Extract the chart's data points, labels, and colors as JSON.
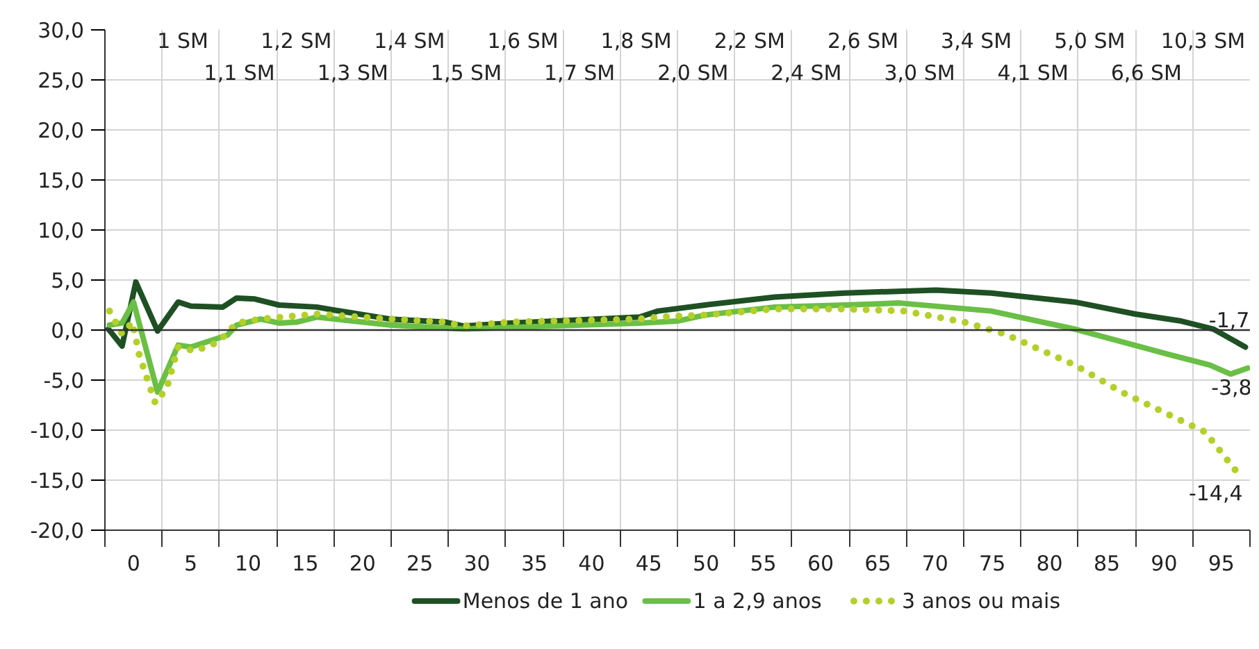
{
  "chart_data": {
    "type": "line",
    "xlim": [
      -2.5,
      97.5
    ],
    "ylim": [
      -20,
      30
    ],
    "xticks": [
      {
        "value": -2.5,
        "label": null
      },
      {
        "value": 0,
        "label": "0"
      },
      {
        "value": 2.5,
        "label": null
      },
      {
        "value": 5,
        "label": "5"
      },
      {
        "value": 7.5,
        "label": null
      },
      {
        "value": 10,
        "label": "10"
      },
      {
        "value": 12.5,
        "label": null
      },
      {
        "value": 15,
        "label": "15"
      },
      {
        "value": 17.5,
        "label": null
      },
      {
        "value": 20,
        "label": "20"
      },
      {
        "value": 22.5,
        "label": null
      },
      {
        "value": 25,
        "label": "25"
      },
      {
        "value": 27.5,
        "label": null
      },
      {
        "value": 30,
        "label": "30"
      },
      {
        "value": 32.5,
        "label": null
      },
      {
        "value": 35,
        "label": "35"
      },
      {
        "value": 37.5,
        "label": null
      },
      {
        "value": 40,
        "label": "40"
      },
      {
        "value": 42.5,
        "label": null
      },
      {
        "value": 45,
        "label": "45"
      },
      {
        "value": 47.5,
        "label": null
      },
      {
        "value": 50,
        "label": "50"
      },
      {
        "value": 52.5,
        "label": null
      },
      {
        "value": 55,
        "label": "55"
      },
      {
        "value": 57.5,
        "label": null
      },
      {
        "value": 60,
        "label": "60"
      },
      {
        "value": 62.5,
        "label": null
      },
      {
        "value": 65,
        "label": "65"
      },
      {
        "value": 67.5,
        "label": null
      },
      {
        "value": 70,
        "label": "70"
      },
      {
        "value": 72.5,
        "label": null
      },
      {
        "value": 75,
        "label": "75"
      },
      {
        "value": 77.5,
        "label": null
      },
      {
        "value": 80,
        "label": "80"
      },
      {
        "value": 82.5,
        "label": null
      },
      {
        "value": 85,
        "label": "85"
      },
      {
        "value": 87.5,
        "label": null
      },
      {
        "value": 90,
        "label": "90"
      },
      {
        "value": 92.5,
        "label": null
      },
      {
        "value": 95,
        "label": "95"
      },
      {
        "value": 97.5,
        "label": null
      }
    ],
    "yticks": [
      {
        "value": -20,
        "label": "-20,0"
      },
      {
        "value": -15,
        "label": "-15,0"
      },
      {
        "value": -10,
        "label": "-10,0"
      },
      {
        "value": -5,
        "label": "-5,0"
      },
      {
        "value": 0,
        "label": "0,0"
      },
      {
        "value": 5,
        "label": "5,0"
      },
      {
        "value": 10,
        "label": "10,0"
      },
      {
        "value": 15,
        "label": "15,0"
      },
      {
        "value": 20,
        "label": "20,0"
      },
      {
        "value": 25,
        "label": "25,0"
      },
      {
        "value": 30,
        "label": "30,0"
      }
    ],
    "grid": true,
    "legend": "bottom",
    "ref_lines": [
      {
        "axis": "y",
        "value": 0,
        "color": "#333333"
      }
    ],
    "series": [
      {
        "name": "Menos de 1 ano",
        "color": "#1e5023",
        "line_style": "solid",
        "x": [
          -2.2,
          -1.0,
          0.2,
          2.1,
          3.9,
          5.0,
          7.8,
          9.0,
          10.6,
          12.7,
          16.0,
          17.5,
          22.4,
          27.2,
          28.8,
          32.9,
          44.2,
          45.8,
          49.9,
          56.0,
          62.1,
          70.1,
          74.9,
          82.2,
          87.5,
          91.5,
          94.3,
          97.1
        ],
        "values": [
          0.1,
          -1.6,
          4.8,
          -0.1,
          2.8,
          2.4,
          2.3,
          3.2,
          3.1,
          2.5,
          2.3,
          2.0,
          1.1,
          0.8,
          0.4,
          0.7,
          1.3,
          1.9,
          2.5,
          3.3,
          3.7,
          4.0,
          3.7,
          2.8,
          1.6,
          0.9,
          0.1,
          -1.7
        ]
      },
      {
        "name": "1 a 2,9 anos",
        "color": "#6abf45",
        "line_style": "solid",
        "x": [
          -2.1,
          -1.0,
          0.0,
          2.1,
          3.9,
          5.0,
          8.2,
          9.0,
          11.1,
          12.7,
          14.3,
          16.0,
          22.4,
          28.8,
          44.2,
          47.5,
          49.9,
          56.0,
          62.1,
          66.9,
          74.9,
          82.2,
          90.3,
          94.0,
          95.8,
          97.3
        ],
        "values": [
          0.5,
          0.7,
          2.8,
          -6.2,
          -1.5,
          -1.7,
          -0.5,
          0.5,
          1.1,
          0.7,
          0.8,
          1.3,
          0.5,
          0.1,
          0.7,
          0.9,
          1.5,
          2.3,
          2.5,
          2.7,
          1.9,
          0.1,
          -2.4,
          -3.5,
          -4.4,
          -3.8
        ]
      },
      {
        "name": "3 anos ou mais",
        "color": "#b5cf2a",
        "line_style": "dotted",
        "x": [
          -2.1,
          -1.0,
          -0.1,
          0.5,
          1.9,
          2.9,
          3.9,
          5.4,
          7.4,
          9.0,
          11.1,
          16.0,
          22.4,
          27.2,
          28.8,
          32.9,
          44.2,
          45.8,
          49.9,
          56.0,
          62.1,
          67.3,
          72.5,
          76.1,
          82.2,
          86.3,
          90.3,
          93.6,
          96.5
        ],
        "values": [
          1.9,
          -0.4,
          0.8,
          -2.5,
          -7.3,
          -5.8,
          -1.7,
          -2.1,
          -1.2,
          0.7,
          1.1,
          1.6,
          1.1,
          0.8,
          0.4,
          0.8,
          1.1,
          1.3,
          1.5,
          2.1,
          2.1,
          1.9,
          0.8,
          -0.4,
          -3.5,
          -6.2,
          -8.4,
          -10.2,
          -14.4
        ]
      }
    ],
    "annotations": [
      "1 SM",
      "1,1 SM",
      "1,2 SM",
      "1,3 SM",
      "1,4 SM",
      "1,5 SM",
      "1,6 SM",
      "1,7 SM",
      "1,8 SM",
      "2,0 SM",
      "2,2 SM",
      "2,4 SM",
      "2,6 SM",
      "3,0 SM",
      "3,4 SM",
      "4,1 SM",
      "5,0 SM",
      "6,6 SM",
      "10,3 SM",
      {
        "text": "-1,7",
        "x": 97.1,
        "y": -1.7
      },
      {
        "text": "-3,8",
        "x": 97.3,
        "y": -3.8
      },
      {
        "text": "-14,4",
        "x": 96.5,
        "y": -14.4
      }
    ]
  }
}
